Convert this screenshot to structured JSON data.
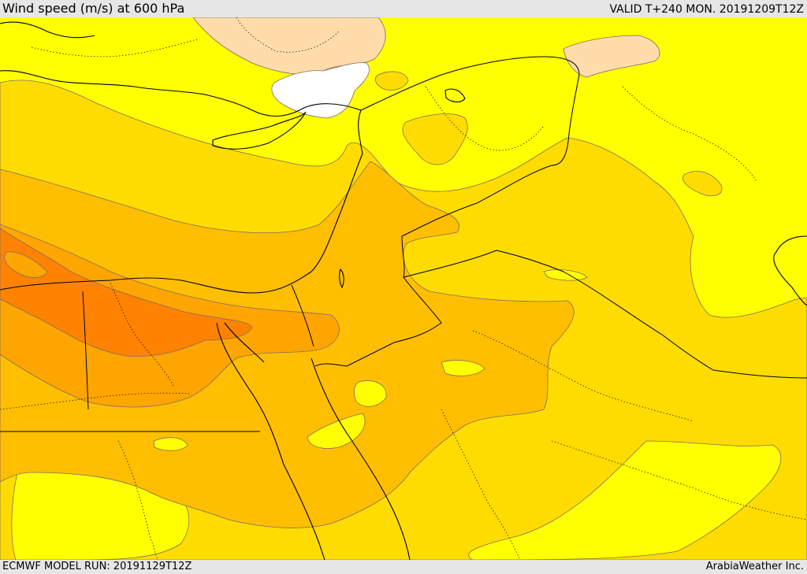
{
  "header": {
    "title": "Wind speed (m/s) at 600 hPa",
    "valid_time": "VALID T+240 MON. 20191209T12Z"
  },
  "footer": {
    "model_run": "ECMWF MODEL RUN: 20191129T12Z",
    "credit": "ArabiaWeather Inc."
  },
  "colors": {
    "band_lowest": "#ffffff",
    "band_light": "#ffdcaa",
    "band_1": "#ffff00",
    "band_2": "#ffdc00",
    "band_3": "#ffbe00",
    "band_4": "#ffa500",
    "band_5": "#ff8200",
    "coastline": "#000000",
    "contour_line": "#807060"
  }
}
